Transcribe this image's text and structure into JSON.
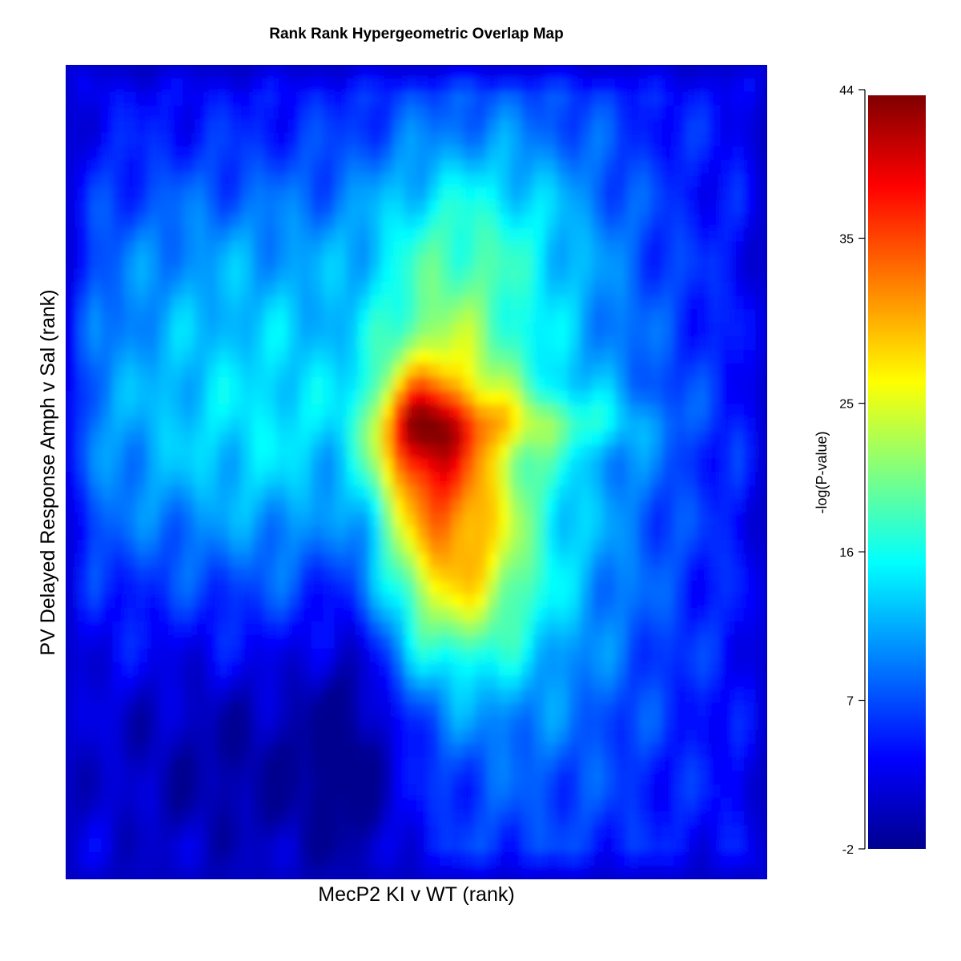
{
  "chart_data": {
    "type": "heatmap",
    "title": "Rank Rank Hypergeometric Overlap Map",
    "xlabel": "MecP2  KI v WT (rank)",
    "ylabel": "PV Delayed Response Amph v Sal (rank)",
    "colorbar": {
      "label": "-log(P-value)",
      "min": -2,
      "max": 44,
      "ticks": [
        -2,
        7,
        16,
        25,
        35,
        44
      ],
      "tick_labels": [
        "-2",
        "7",
        "16",
        "25",
        "35",
        "44"
      ],
      "colormap": [
        "#00008f",
        "#0000ff",
        "#00ffff",
        "#ffff00",
        "#ff0000",
        "#800000"
      ]
    },
    "grid_size": 60,
    "features": [
      {
        "name": "overlap-peak",
        "x": 0.5,
        "y": 0.55,
        "value": 44
      },
      {
        "name": "central-lobe",
        "x": 0.58,
        "y": 0.56,
        "value": 30
      },
      {
        "name": "upper-plume",
        "x": 0.57,
        "y": 0.22,
        "value": 24
      },
      {
        "name": "left-band",
        "x": 0.25,
        "y": 0.52,
        "value": 18
      },
      {
        "name": "lower-left-trough",
        "x": 0.3,
        "y": 0.87,
        "value": 0
      }
    ]
  }
}
